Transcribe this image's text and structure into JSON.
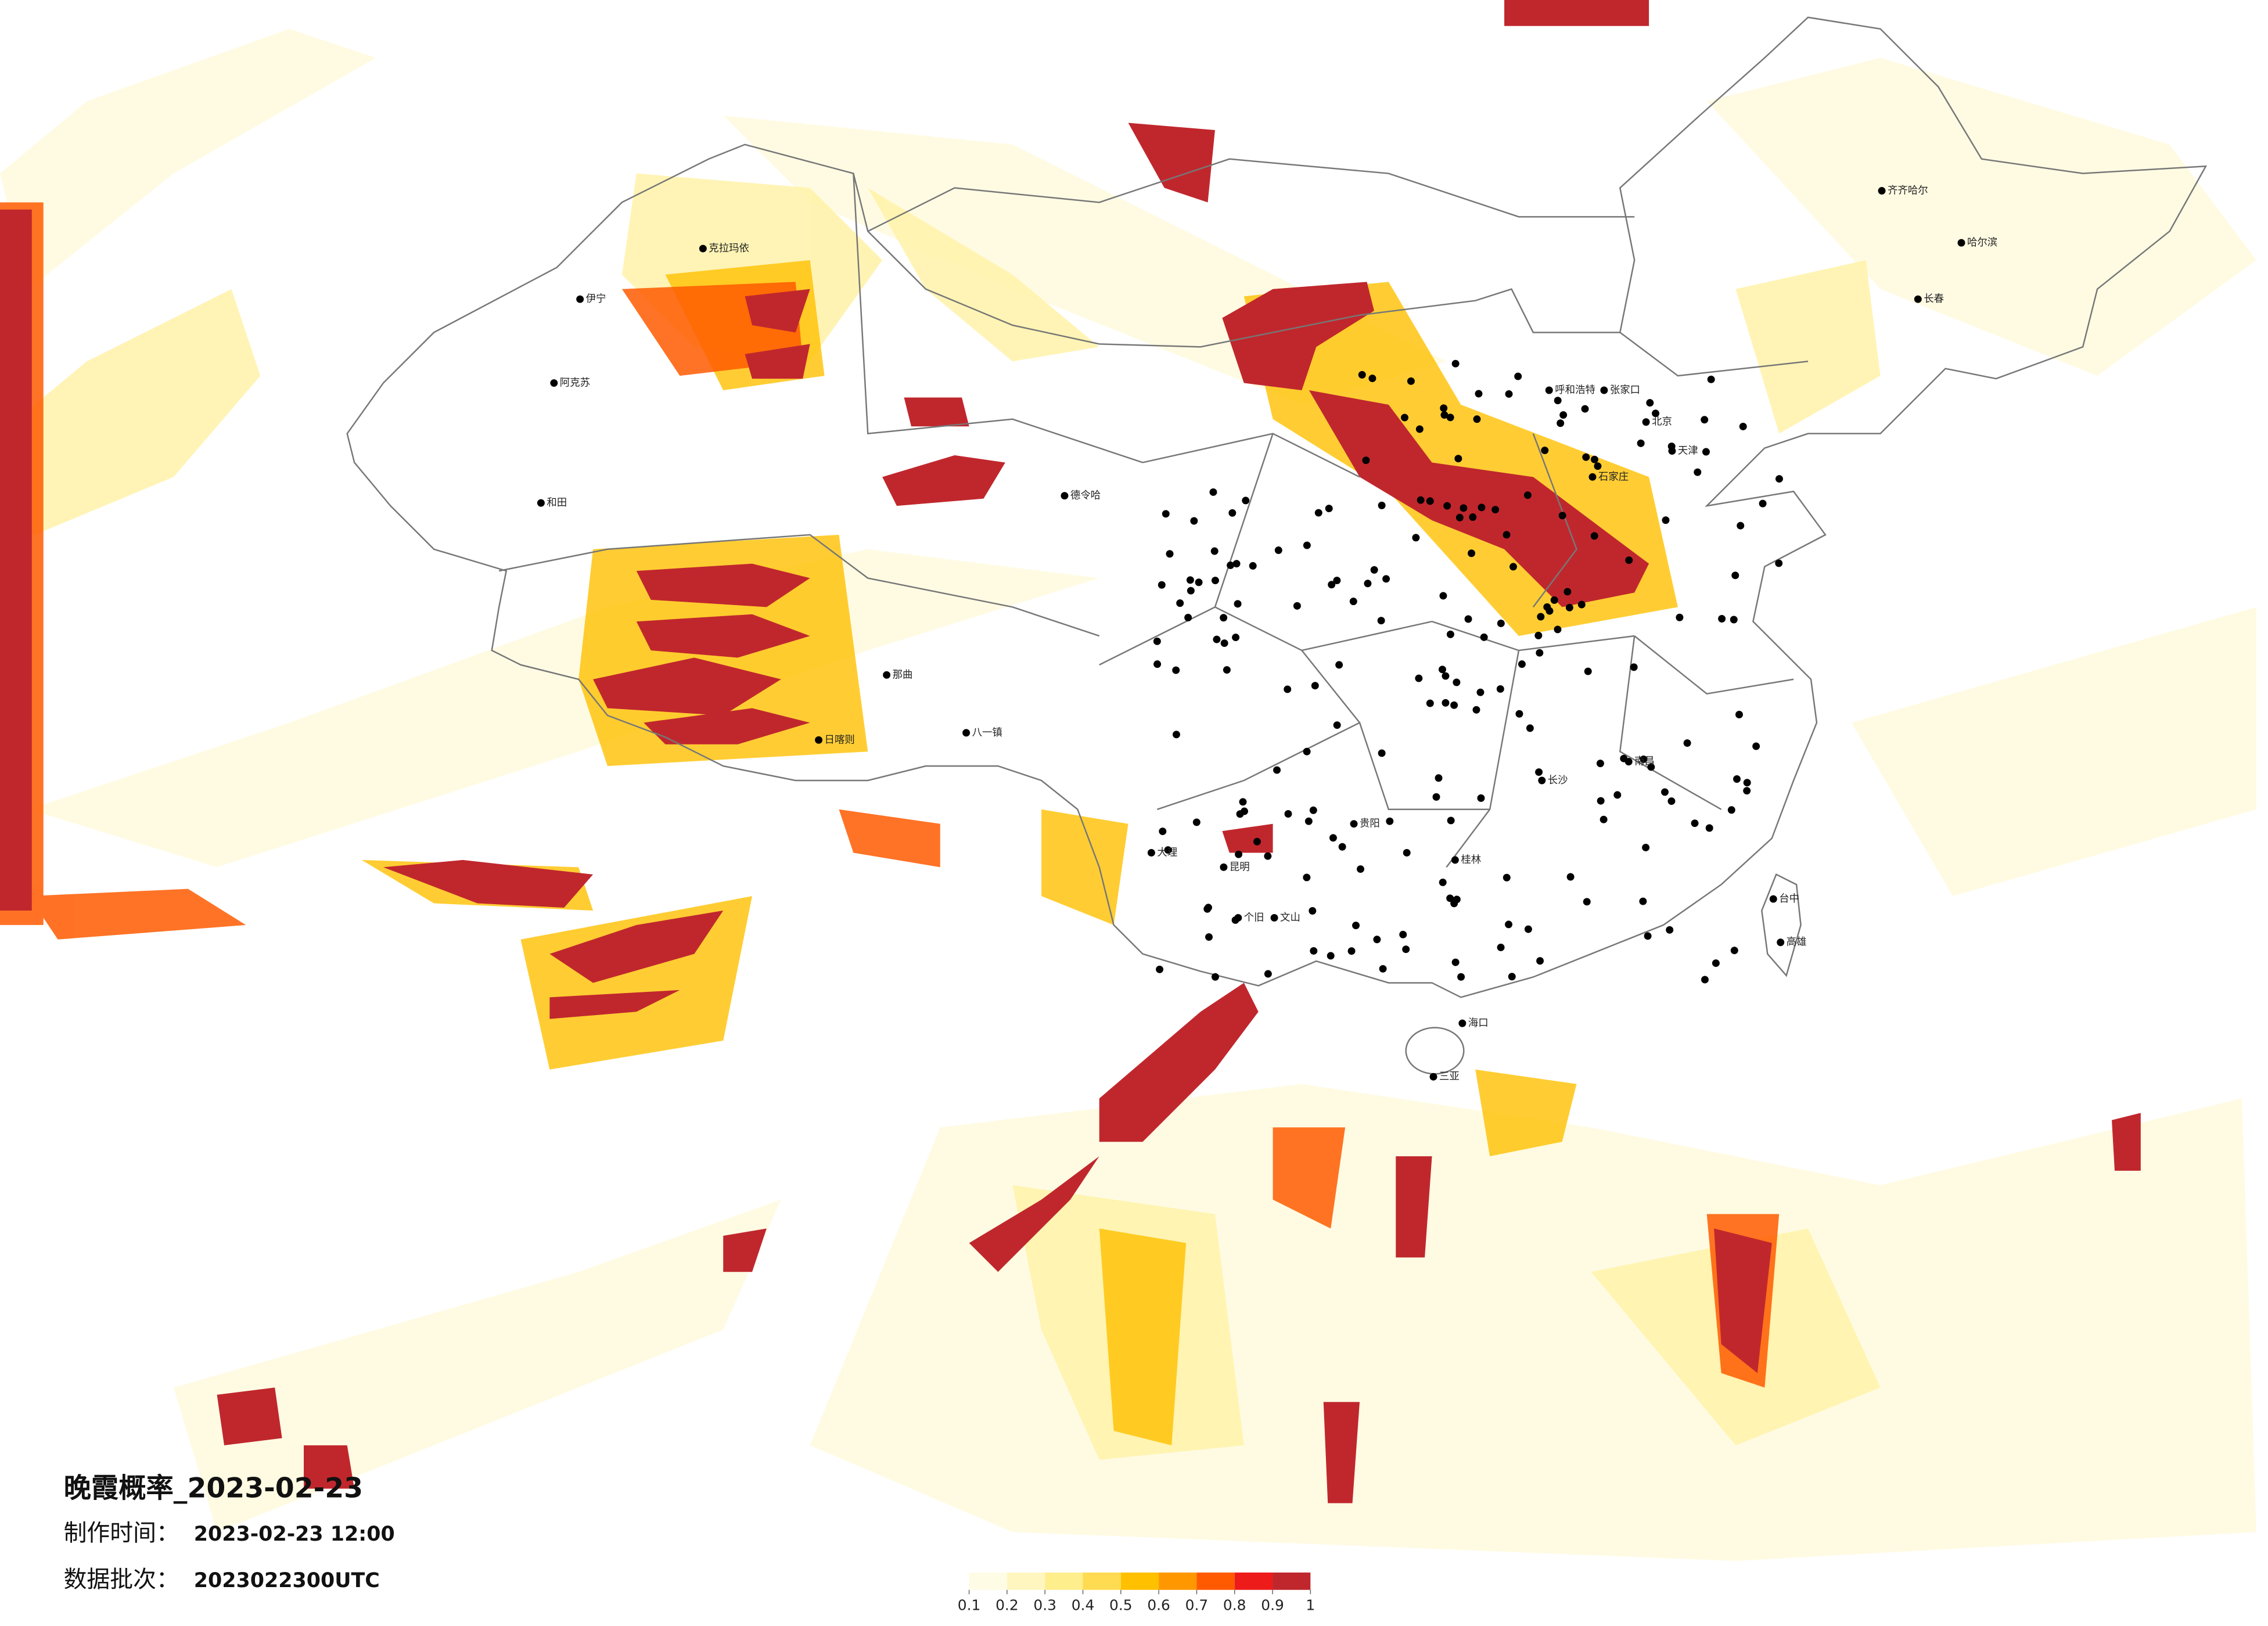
{
  "title": "晚霞概率_2023-02-23",
  "info": [
    {
      "label": "制作时间：",
      "value": "2023-02-23 12:00"
    },
    {
      "label": "数据批次：",
      "value": "2023022300UTC"
    }
  ],
  "legend": {
    "ticks": [
      0.1,
      0.2,
      0.3,
      0.4,
      0.5,
      0.6,
      0.7,
      0.8,
      0.9,
      1
    ],
    "colors": [
      "#fffce6",
      "#fff6bf",
      "#ffee8c",
      "#ffdb52",
      "#ffc000",
      "#ff9800",
      "#ff5a00",
      "#ee1b1b",
      "#c0272d"
    ]
  },
  "cities": [
    "伊宁",
    "阿克苏",
    "和田",
    "克拉玛依",
    "日喀则",
    "八一镇",
    "呼和浩特",
    "张家口",
    "北京",
    "天津",
    "石家庄",
    "齐齐哈尔",
    "哈尔滨",
    "长春",
    "昆明",
    "贵阳",
    "长沙",
    "南昌",
    "桂林",
    "大理",
    "个旧",
    "文山",
    "海口",
    "三亚",
    "台中",
    "高雄",
    "德令哈",
    "那曲"
  ]
}
